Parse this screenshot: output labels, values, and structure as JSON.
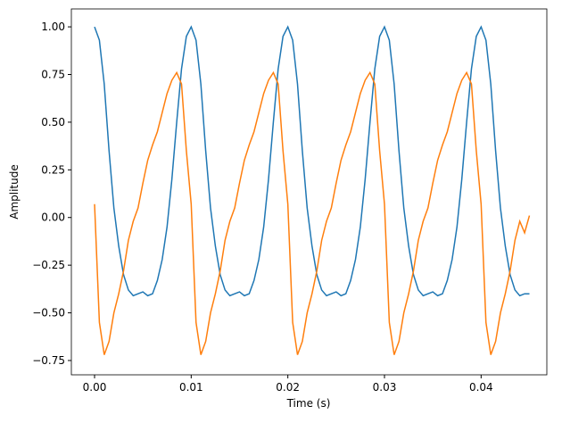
{
  "chart_data": {
    "type": "line",
    "xlabel": "Time (s)",
    "ylabel": "Amplitude",
    "x": [
      0,
      0.0005,
      0.001,
      0.0015,
      0.002,
      0.0025,
      0.003,
      0.0035,
      0.004,
      0.0045,
      0.005,
      0.0055,
      0.006,
      0.0065,
      0.007,
      0.0075,
      0.008,
      0.0085,
      0.009,
      0.0095,
      0.01,
      0.0105,
      0.011,
      0.0115,
      0.012,
      0.0125,
      0.013,
      0.0135,
      0.014,
      0.0145,
      0.015,
      0.0155,
      0.016,
      0.0165,
      0.017,
      0.0175,
      0.018,
      0.0185,
      0.019,
      0.0195,
      0.02,
      0.0205,
      0.021,
      0.0215,
      0.022,
      0.0225,
      0.023,
      0.0235,
      0.024,
      0.0245,
      0.025,
      0.0255,
      0.026,
      0.0265,
      0.027,
      0.0275,
      0.028,
      0.0285,
      0.029,
      0.0295,
      0.03,
      0.0305,
      0.031,
      0.0315,
      0.032,
      0.0325,
      0.033,
      0.0335,
      0.034,
      0.0345,
      0.035,
      0.0355,
      0.036,
      0.0365,
      0.037,
      0.0375,
      0.038,
      0.0385,
      0.039,
      0.0395,
      0.04,
      0.0405,
      0.041,
      0.0415,
      0.042,
      0.0425,
      0.043,
      0.0435,
      0.044,
      0.0445,
      0.045
    ],
    "series": [
      {
        "color": "#1f77b4",
        "values": [
          1.0,
          0.93,
          0.7,
          0.35,
          0.05,
          -0.15,
          -0.3,
          -0.38,
          -0.41,
          -0.4,
          -0.39,
          -0.41,
          -0.4,
          -0.33,
          -0.22,
          -0.05,
          0.2,
          0.5,
          0.78,
          0.95,
          1.0,
          0.93,
          0.7,
          0.35,
          0.05,
          -0.15,
          -0.3,
          -0.38,
          -0.41,
          -0.4,
          -0.39,
          -0.41,
          -0.4,
          -0.33,
          -0.22,
          -0.05,
          0.2,
          0.5,
          0.78,
          0.95,
          1.0,
          0.93,
          0.7,
          0.35,
          0.05,
          -0.15,
          -0.3,
          -0.38,
          -0.41,
          -0.4,
          -0.39,
          -0.41,
          -0.4,
          -0.33,
          -0.22,
          -0.05,
          0.2,
          0.5,
          0.78,
          0.95,
          1.0,
          0.93,
          0.7,
          0.35,
          0.05,
          -0.15,
          -0.3,
          -0.38,
          -0.41,
          -0.4,
          -0.39,
          -0.41,
          -0.4,
          -0.33,
          -0.22,
          -0.05,
          0.2,
          0.5,
          0.78,
          0.95,
          1.0,
          0.93,
          0.7,
          0.35,
          0.05,
          -0.15,
          -0.3,
          -0.38,
          -0.41,
          -0.4,
          -0.4
        ]
      },
      {
        "color": "#ff7f0e",
        "values": [
          0.07,
          -0.55,
          -0.72,
          -0.65,
          -0.5,
          -0.4,
          -0.28,
          -0.12,
          -0.02,
          0.05,
          0.18,
          0.3,
          0.38,
          0.45,
          0.55,
          0.65,
          0.72,
          0.76,
          0.7,
          0.35,
          0.07,
          -0.55,
          -0.72,
          -0.65,
          -0.5,
          -0.4,
          -0.28,
          -0.12,
          -0.02,
          0.05,
          0.18,
          0.3,
          0.38,
          0.45,
          0.55,
          0.65,
          0.72,
          0.76,
          0.7,
          0.35,
          0.07,
          -0.55,
          -0.72,
          -0.65,
          -0.5,
          -0.4,
          -0.28,
          -0.12,
          -0.02,
          0.05,
          0.18,
          0.3,
          0.38,
          0.45,
          0.55,
          0.65,
          0.72,
          0.76,
          0.7,
          0.35,
          0.07,
          -0.55,
          -0.72,
          -0.65,
          -0.5,
          -0.4,
          -0.28,
          -0.12,
          -0.02,
          0.05,
          0.18,
          0.3,
          0.38,
          0.45,
          0.55,
          0.65,
          0.72,
          0.76,
          0.7,
          0.35,
          0.07,
          -0.55,
          -0.72,
          -0.65,
          -0.5,
          -0.4,
          -0.28,
          -0.12,
          -0.02,
          -0.08,
          0.01
        ]
      }
    ],
    "xlim": [
      -0.0024,
      0.0468
    ],
    "ylim": [
      -0.825,
      1.094
    ],
    "xticks": [
      {
        "value": 0,
        "label": "0.00"
      },
      {
        "value": 0.01,
        "label": "0.01"
      },
      {
        "value": 0.02,
        "label": "0.02"
      },
      {
        "value": 0.03,
        "label": "0.03"
      },
      {
        "value": 0.04,
        "label": "0.04"
      }
    ],
    "yticks": [
      {
        "value": -0.75,
        "label": "−0.75"
      },
      {
        "value": -0.5,
        "label": "−0.50"
      },
      {
        "value": -0.25,
        "label": "−0.25"
      },
      {
        "value": 0,
        "label": "0.00"
      },
      {
        "value": 0.25,
        "label": "0.25"
      },
      {
        "value": 0.5,
        "label": "0.50"
      },
      {
        "value": 0.75,
        "label": "0.75"
      },
      {
        "value": 1,
        "label": "1.00"
      }
    ]
  }
}
